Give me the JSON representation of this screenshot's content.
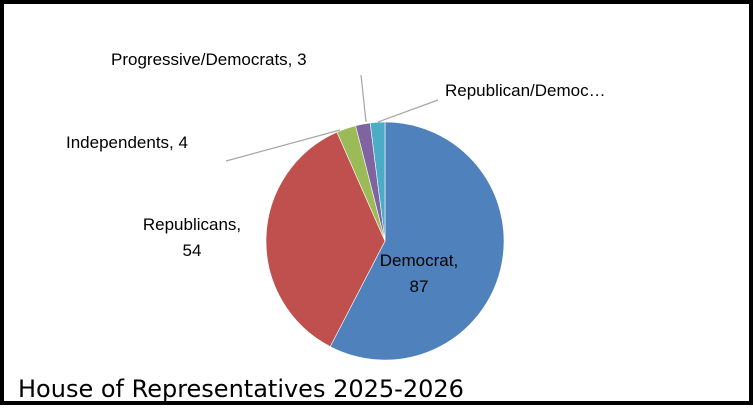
{
  "chart_data": {
    "type": "pie",
    "title": "House of Representatives 2025-2026",
    "slices": [
      {
        "name": "Democrat",
        "value": 87,
        "label_lines": [
          "Democrat,",
          "87"
        ],
        "color": "#4f81bd"
      },
      {
        "name": "Republicans",
        "value": 54,
        "label_lines": [
          "Republicans,",
          "54"
        ],
        "color": "#c0504d"
      },
      {
        "name": "Independents",
        "value": 4,
        "label_lines": [
          "Independents, 4"
        ],
        "color": "#9bbb59"
      },
      {
        "name": "Progressive/Democrats",
        "value": 3,
        "label_lines": [
          "Progressive/Democrats, 3"
        ],
        "color": "#8064a2"
      },
      {
        "name": "Republican/Democ…",
        "value": 3,
        "label_lines": [
          "Republican/Democ…"
        ],
        "color": "#4bacc6"
      }
    ],
    "start_angle_deg": 0,
    "direction": "clockwise"
  }
}
